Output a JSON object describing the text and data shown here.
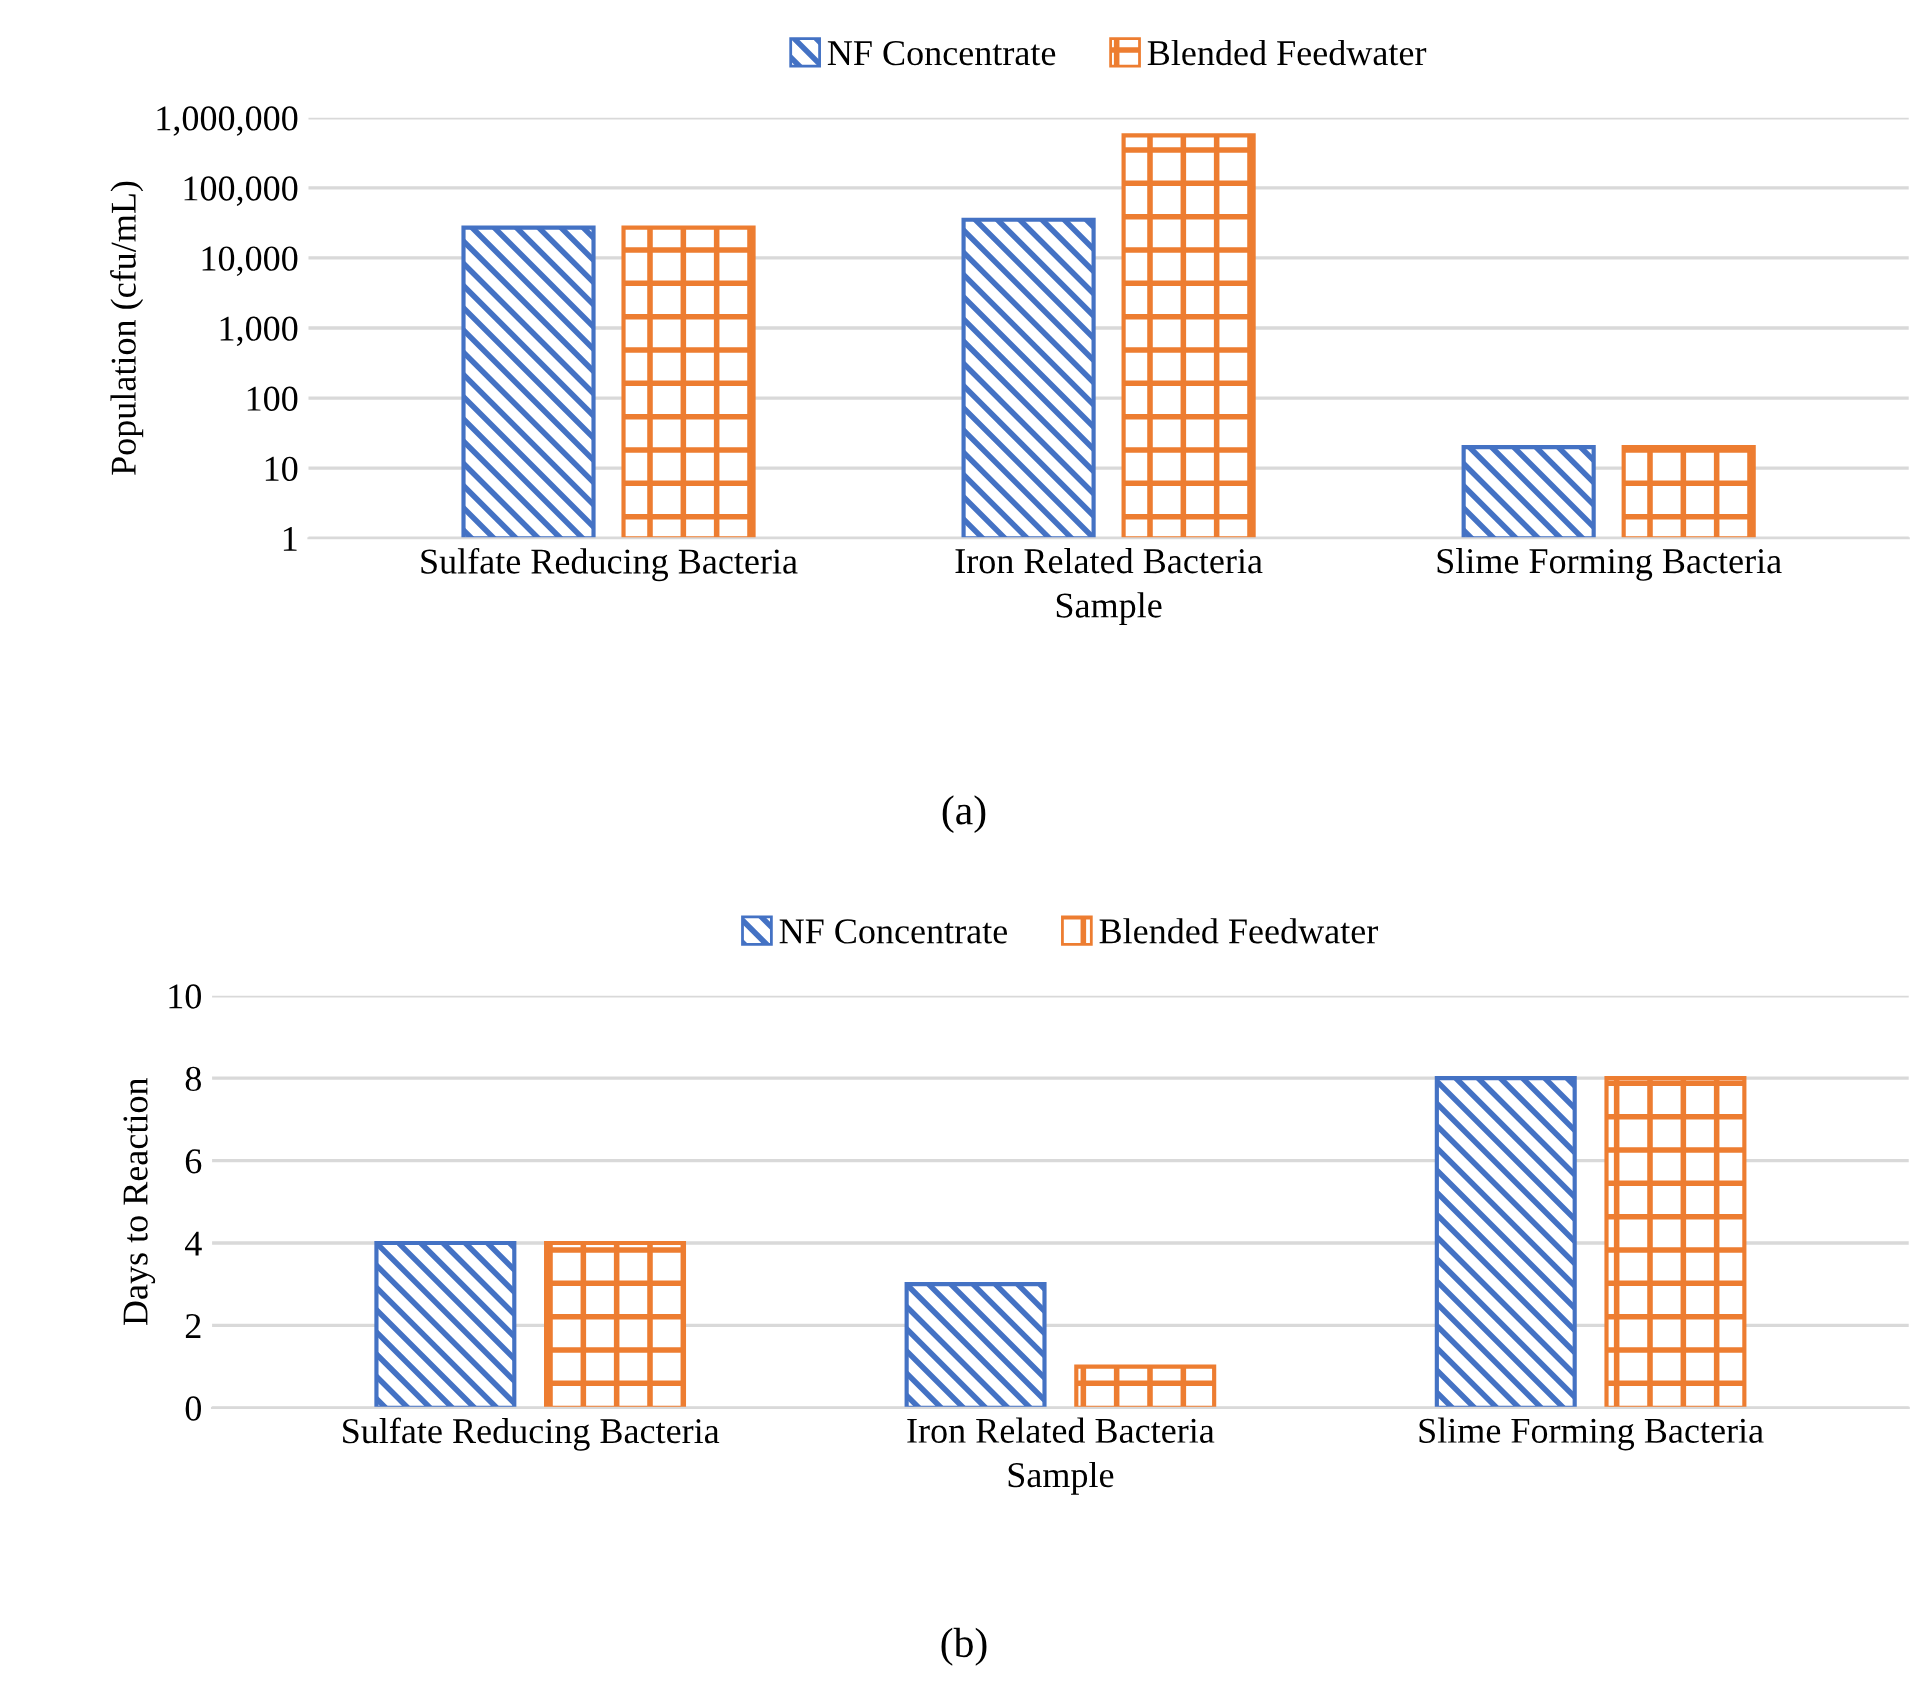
{
  "chart_data": [
    {
      "type": "bar",
      "xlabel": "Sample",
      "ylabel": "Population (cfu/mL)",
      "categories": [
        "Sulfate Reducing Bacteria",
        "Iron Related Bacteria",
        "Slime Forming Bacteria"
      ],
      "series": [
        {
          "name": "NF Concentrate",
          "color": "#4472c4",
          "values": [
            27000,
            35000,
            20
          ]
        },
        {
          "name": "Blended Feedwater",
          "color": "#ed7d31",
          "values": [
            27000,
            560000,
            20
          ]
        }
      ],
      "log": true,
      "ylim": [
        1,
        1000000
      ],
      "yticks": [
        {
          "value": 1,
          "label": "1"
        },
        {
          "value": 10,
          "label": "10"
        },
        {
          "value": 100,
          "label": "100"
        },
        {
          "value": 1000,
          "label": "1,000"
        },
        {
          "value": 10000,
          "label": "10,000"
        },
        {
          "value": 100000,
          "label": "100,000"
        },
        {
          "value": 1000000,
          "label": "1,000,000"
        }
      ],
      "grid": "y",
      "legend": "top",
      "annotations": [
        "(a)"
      ]
    },
    {
      "type": "bar",
      "xlabel": "Sample",
      "ylabel": "Days to Reaction",
      "categories": [
        "Sulfate Reducing Bacteria",
        "Iron Related Bacteria",
        "Slime Forming Bacteria"
      ],
      "series": [
        {
          "name": "NF Concentrate",
          "color": "#4472c4",
          "values": [
            4,
            3,
            8
          ]
        },
        {
          "name": "Blended Feedwater",
          "color": "#ed7d31",
          "values": [
            4,
            1,
            8
          ]
        }
      ],
      "ylim": [
        0,
        10
      ],
      "yticks": [
        0,
        2,
        4,
        6,
        8,
        10
      ],
      "grid": "y",
      "legend": "top",
      "annotations": [
        "(b)"
      ]
    }
  ]
}
